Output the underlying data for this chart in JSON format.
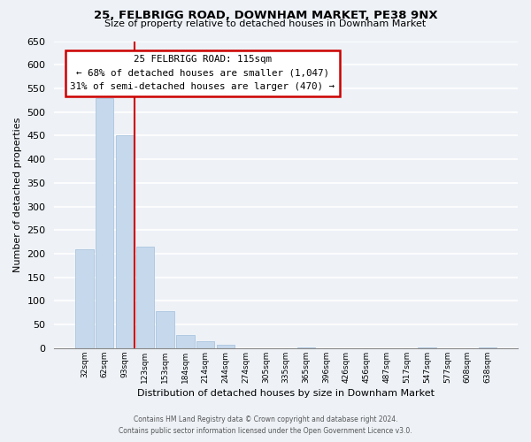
{
  "title": "25, FELBRIGG ROAD, DOWNHAM MARKET, PE38 9NX",
  "subtitle": "Size of property relative to detached houses in Downham Market",
  "xlabel": "Distribution of detached houses by size in Downham Market",
  "ylabel": "Number of detached properties",
  "bar_color": "#c6d9ec",
  "bar_edge_color": "#aac4de",
  "categories": [
    "32sqm",
    "62sqm",
    "93sqm",
    "123sqm",
    "153sqm",
    "184sqm",
    "214sqm",
    "244sqm",
    "274sqm",
    "305sqm",
    "335sqm",
    "365sqm",
    "396sqm",
    "426sqm",
    "456sqm",
    "487sqm",
    "517sqm",
    "547sqm",
    "577sqm",
    "608sqm",
    "638sqm"
  ],
  "values": [
    210,
    530,
    450,
    215,
    78,
    28,
    15,
    8,
    0,
    0,
    0,
    2,
    0,
    0,
    0,
    0,
    0,
    1,
    0,
    0,
    1
  ],
  "ylim": [
    0,
    650
  ],
  "yticks": [
    0,
    50,
    100,
    150,
    200,
    250,
    300,
    350,
    400,
    450,
    500,
    550,
    600,
    650
  ],
  "property_line_x": 2.5,
  "property_label": "25 FELBRIGG ROAD: 115sqm",
  "annotation_line1": "← 68% of detached houses are smaller (1,047)",
  "annotation_line2": "31% of semi-detached houses are larger (470) →",
  "footer_line1": "Contains HM Land Registry data © Crown copyright and database right 2024.",
  "footer_line2": "Contains public sector information licensed under the Open Government Licence v3.0.",
  "background_color": "#eef2f7",
  "grid_color": "#ffffff",
  "annotation_box_color": "#ffffff",
  "annotation_box_edge": "#cc0000",
  "property_line_color": "#cc0000"
}
